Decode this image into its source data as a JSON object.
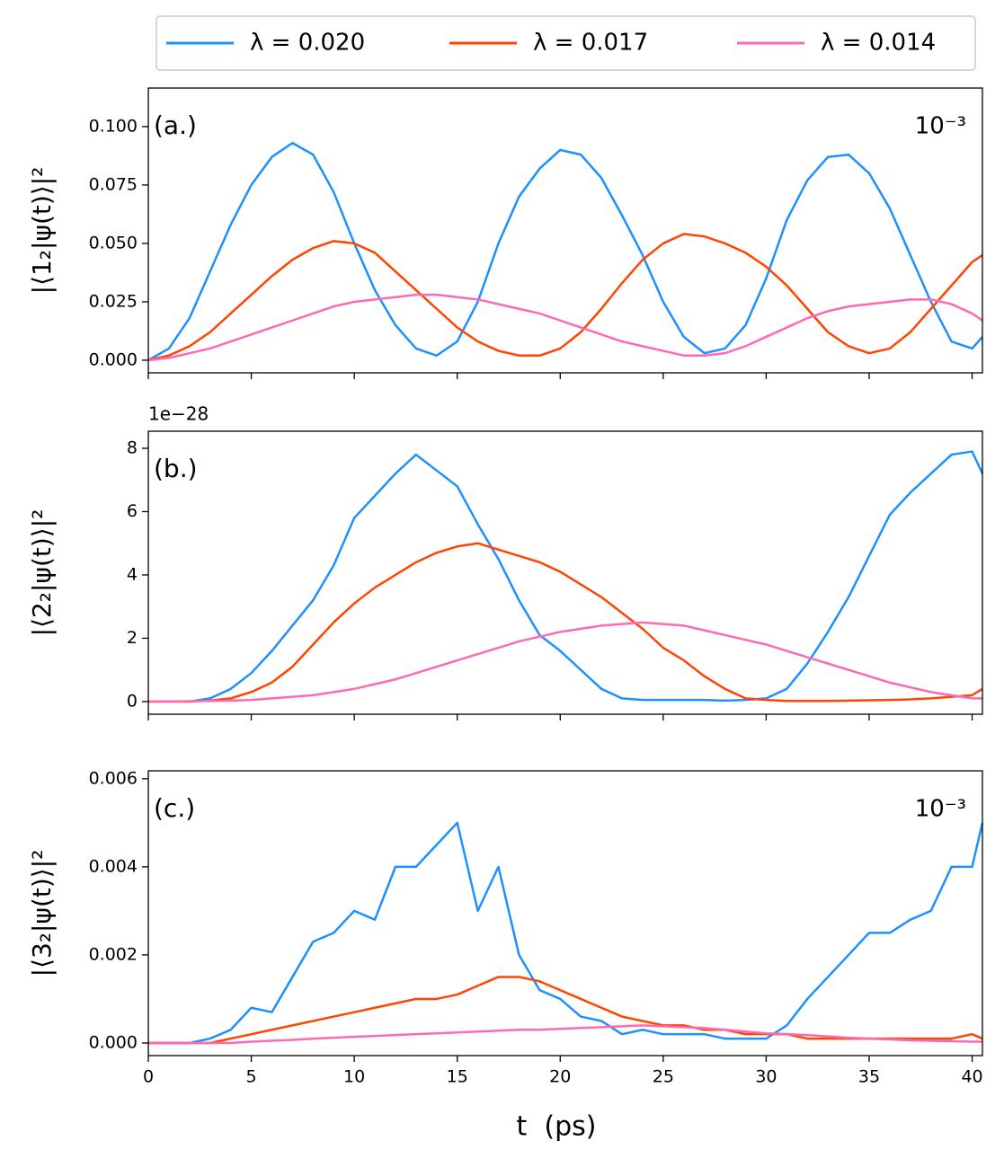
{
  "chart_data": [
    {
      "type": "line",
      "panel_label": "(a.)",
      "annotation": "10⁻³",
      "ylabel": "|⟨1₂|ψ(t)⟩|²",
      "legend": "top",
      "x": [
        0,
        1,
        2,
        3,
        4,
        5,
        6,
        7,
        8,
        9,
        10,
        11,
        12,
        13,
        14,
        15,
        16,
        17,
        18,
        19,
        20,
        21,
        22,
        23,
        24,
        25,
        26,
        27,
        28,
        29,
        30,
        31,
        32,
        33,
        34,
        35,
        36,
        37,
        38,
        39,
        40,
        40.5
      ],
      "series": [
        {
          "name": "λ = 0.020",
          "color": "#1e90ff",
          "values": [
            0,
            0.005,
            0.018,
            0.038,
            0.058,
            0.075,
            0.087,
            0.093,
            0.088,
            0.072,
            0.05,
            0.03,
            0.015,
            0.005,
            0.002,
            0.008,
            0.025,
            0.05,
            0.07,
            0.082,
            0.09,
            0.088,
            0.078,
            0.062,
            0.045,
            0.025,
            0.01,
            0.003,
            0.005,
            0.015,
            0.035,
            0.06,
            0.077,
            0.087,
            0.088,
            0.08,
            0.065,
            0.045,
            0.025,
            0.008,
            0.005,
            0.01
          ]
        },
        {
          "name": "λ = 0.017",
          "color": "#ff4500",
          "values": [
            0,
            0.002,
            0.006,
            0.012,
            0.02,
            0.028,
            0.036,
            0.043,
            0.048,
            0.051,
            0.05,
            0.046,
            0.038,
            0.03,
            0.022,
            0.014,
            0.008,
            0.004,
            0.002,
            0.002,
            0.005,
            0.012,
            0.022,
            0.033,
            0.043,
            0.05,
            0.054,
            0.053,
            0.05,
            0.046,
            0.04,
            0.032,
            0.022,
            0.012,
            0.006,
            0.003,
            0.005,
            0.012,
            0.022,
            0.032,
            0.042,
            0.045
          ]
        },
        {
          "name": "λ = 0.014",
          "color": "#ff69b4",
          "values": [
            0,
            0.001,
            0.003,
            0.005,
            0.008,
            0.011,
            0.014,
            0.017,
            0.02,
            0.023,
            0.025,
            0.026,
            0.027,
            0.028,
            0.028,
            0.027,
            0.026,
            0.024,
            0.022,
            0.02,
            0.017,
            0.014,
            0.011,
            0.008,
            0.006,
            0.004,
            0.002,
            0.002,
            0.003,
            0.006,
            0.01,
            0.014,
            0.018,
            0.021,
            0.023,
            0.024,
            0.025,
            0.026,
            0.026,
            0.024,
            0.02,
            0.017
          ]
        }
      ],
      "xlim": [
        0,
        40.5
      ],
      "ylim": [
        -0.0054,
        0.1165
      ],
      "xticks": [
        0,
        5,
        10,
        15,
        20,
        25,
        30,
        35,
        40
      ],
      "yticks": [
        {
          "value": 0,
          "label": "0.000"
        },
        {
          "value": 0.025,
          "label": "0.025"
        },
        {
          "value": 0.05,
          "label": "0.050"
        },
        {
          "value": 0.075,
          "label": "0.075"
        },
        {
          "value": 0.1,
          "label": "0.100"
        }
      ]
    },
    {
      "type": "line",
      "panel_label": "(b.)",
      "offset_text": "1e−28",
      "ylabel": "|⟨2₂|ψ(t)⟩|²",
      "x": [
        0,
        1,
        2,
        3,
        4,
        5,
        6,
        7,
        8,
        9,
        10,
        11,
        12,
        13,
        14,
        15,
        16,
        17,
        18,
        19,
        20,
        21,
        22,
        23,
        24,
        25,
        26,
        27,
        28,
        29,
        30,
        31,
        32,
        33,
        34,
        35,
        36,
        37,
        38,
        39,
        40,
        40.5
      ],
      "series": [
        {
          "color": "#1e90ff",
          "values": [
            0,
            0,
            0,
            0.1,
            0.4,
            0.9,
            1.6,
            2.4,
            3.2,
            4.3,
            5.8,
            6.5,
            7.2,
            7.8,
            7.3,
            6.8,
            5.6,
            4.5,
            3.2,
            2.1,
            1.6,
            1.0,
            0.4,
            0.1,
            0.05,
            0.05,
            0.05,
            0.05,
            0.03,
            0.05,
            0.1,
            0.4,
            1.2,
            2.2,
            3.3,
            4.6,
            5.9,
            6.6,
            7.2,
            7.8,
            7.9,
            7.2
          ]
        },
        {
          "color": "#ff4500",
          "values": [
            0,
            0,
            0,
            0.03,
            0.1,
            0.3,
            0.6,
            1.1,
            1.8,
            2.5,
            3.1,
            3.6,
            4.0,
            4.4,
            4.7,
            4.9,
            5.0,
            4.8,
            4.6,
            4.4,
            4.1,
            3.7,
            3.3,
            2.8,
            2.3,
            1.7,
            1.3,
            0.8,
            0.4,
            0.1,
            0.05,
            0.02,
            0.02,
            0.02,
            0.03,
            0.04,
            0.05,
            0.07,
            0.1,
            0.15,
            0.2,
            0.4
          ]
        },
        {
          "color": "#ff69b4",
          "values": [
            0,
            0,
            0.01,
            0.02,
            0.03,
            0.05,
            0.1,
            0.15,
            0.2,
            0.3,
            0.4,
            0.55,
            0.7,
            0.9,
            1.1,
            1.3,
            1.5,
            1.7,
            1.9,
            2.05,
            2.2,
            2.3,
            2.4,
            2.45,
            2.5,
            2.45,
            2.4,
            2.25,
            2.1,
            1.95,
            1.8,
            1.6,
            1.4,
            1.2,
            1.0,
            0.8,
            0.6,
            0.45,
            0.3,
            0.2,
            0.1,
            0.1
          ]
        }
      ],
      "xlim": [
        0,
        40.5
      ],
      "ylim": [
        -0.4,
        8.54
      ],
      "xticks": [
        0,
        5,
        10,
        15,
        20,
        25,
        30,
        35,
        40
      ],
      "yticks": [
        0,
        2,
        4,
        6,
        8
      ]
    },
    {
      "type": "line",
      "panel_label": "(c.)",
      "annotation": "10⁻³",
      "ylabel": "|⟨3₂|ψ(t)⟩|²",
      "xlabel": "t  (ps)",
      "x": [
        0,
        1,
        2,
        3,
        4,
        5,
        6,
        7,
        8,
        9,
        10,
        11,
        12,
        13,
        14,
        15,
        16,
        17,
        18,
        19,
        20,
        21,
        22,
        23,
        24,
        25,
        26,
        27,
        28,
        29,
        30,
        31,
        32,
        33,
        34,
        35,
        36,
        37,
        38,
        39,
        40,
        40.5
      ],
      "series": [
        {
          "color": "#1e90ff",
          "values": [
            0,
            0,
            0,
            0.0001,
            0.0003,
            0.0008,
            0.0007,
            0.0015,
            0.0023,
            0.0025,
            0.003,
            0.0028,
            0.004,
            0.004,
            0.0045,
            0.005,
            0.003,
            0.004,
            0.002,
            0.0012,
            0.001,
            0.0006,
            0.0005,
            0.0002,
            0.0003,
            0.0002,
            0.0002,
            0.0002,
            0.0001,
            0.0001,
            0.0001,
            0.0004,
            0.001,
            0.0015,
            0.002,
            0.0025,
            0.0025,
            0.0028,
            0.003,
            0.004,
            0.004,
            0.005
          ]
        },
        {
          "color": "#ff4500",
          "values": [
            0,
            0,
            0,
            0,
            0.0001,
            0.0002,
            0.0003,
            0.0004,
            0.0005,
            0.0006,
            0.0007,
            0.0008,
            0.0009,
            0.001,
            0.001,
            0.0011,
            0.0013,
            0.0015,
            0.0015,
            0.0014,
            0.0012,
            0.001,
            0.0008,
            0.0006,
            0.0005,
            0.0004,
            0.0004,
            0.0003,
            0.0003,
            0.0002,
            0.0002,
            0.0002,
            0.0001,
            0.0001,
            0.0001,
            0.0001,
            0.0001,
            0.0001,
            0.0001,
            0.0001,
            0.0002,
            0.0001
          ]
        },
        {
          "color": "#ff69b4",
          "values": [
            0,
            0,
            0,
            0,
            0,
            3e-05,
            5e-05,
            7e-05,
            0.0001,
            0.00012,
            0.00014,
            0.00016,
            0.00018,
            0.0002,
            0.00022,
            0.00024,
            0.00026,
            0.00028,
            0.0003,
            0.0003,
            0.00032,
            0.00034,
            0.00036,
            0.00038,
            0.0004,
            0.00038,
            0.00036,
            0.00034,
            0.0003,
            0.00026,
            0.00022,
            0.0002,
            0.00018,
            0.00015,
            0.00012,
            0.0001,
            8e-05,
            6e-05,
            5e-05,
            4e-05,
            3e-05,
            3e-05
          ]
        }
      ],
      "xlim": [
        0,
        40.5
      ],
      "ylim": [
        -0.000286,
        0.00618
      ],
      "xticks": [
        0,
        5,
        10,
        15,
        20,
        25,
        30,
        35,
        40
      ],
      "yticks": [
        {
          "value": 0,
          "label": "0.000"
        },
        {
          "value": 0.002,
          "label": "0.002"
        },
        {
          "value": 0.004,
          "label": "0.004"
        },
        {
          "value": 0.006,
          "label": "0.006"
        }
      ]
    }
  ]
}
